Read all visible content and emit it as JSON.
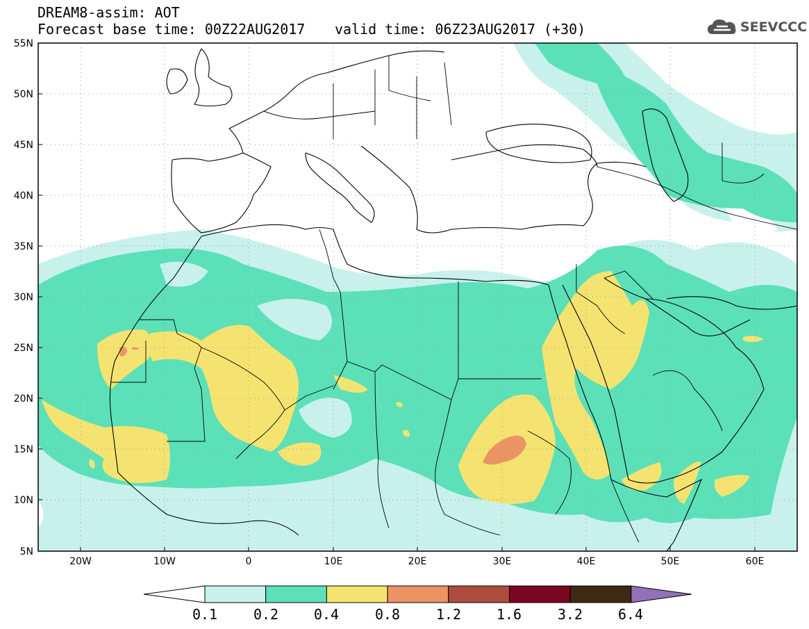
{
  "title": {
    "line1": "DREAM8-assim: AOT",
    "base_time": "Forecast base time: 00Z22AUG2017",
    "valid_time": "valid time: 06Z23AUG2017 (+30)"
  },
  "logo": {
    "text": "SEEVCCC",
    "icon": "cloud-icon"
  },
  "axes": {
    "lat_labels": [
      "55N",
      "50N",
      "45N",
      "40N",
      "35N",
      "30N",
      "25N",
      "20N",
      "15N",
      "10N",
      "5N"
    ],
    "lon_labels": [
      "20W",
      "10W",
      "0",
      "10E",
      "20E",
      "30E",
      "40E",
      "50E",
      "60E"
    ]
  },
  "colorbar": {
    "labels": [
      "0.1",
      "0.2",
      "0.4",
      "0.8",
      "1.2",
      "1.6",
      "3.2",
      "6.4"
    ],
    "colors": [
      "#ffffff",
      "#c8f1ec",
      "#5ce0b8",
      "#f5e371",
      "#ec9464",
      "#ae4b3f",
      "#7a0620",
      "#3e2914",
      "#9271b6"
    ]
  },
  "colors": {
    "level_01": "#c8f1ec",
    "level_02": "#5ce0b8",
    "level_04": "#f5e371",
    "level_08": "#ec9464"
  }
}
